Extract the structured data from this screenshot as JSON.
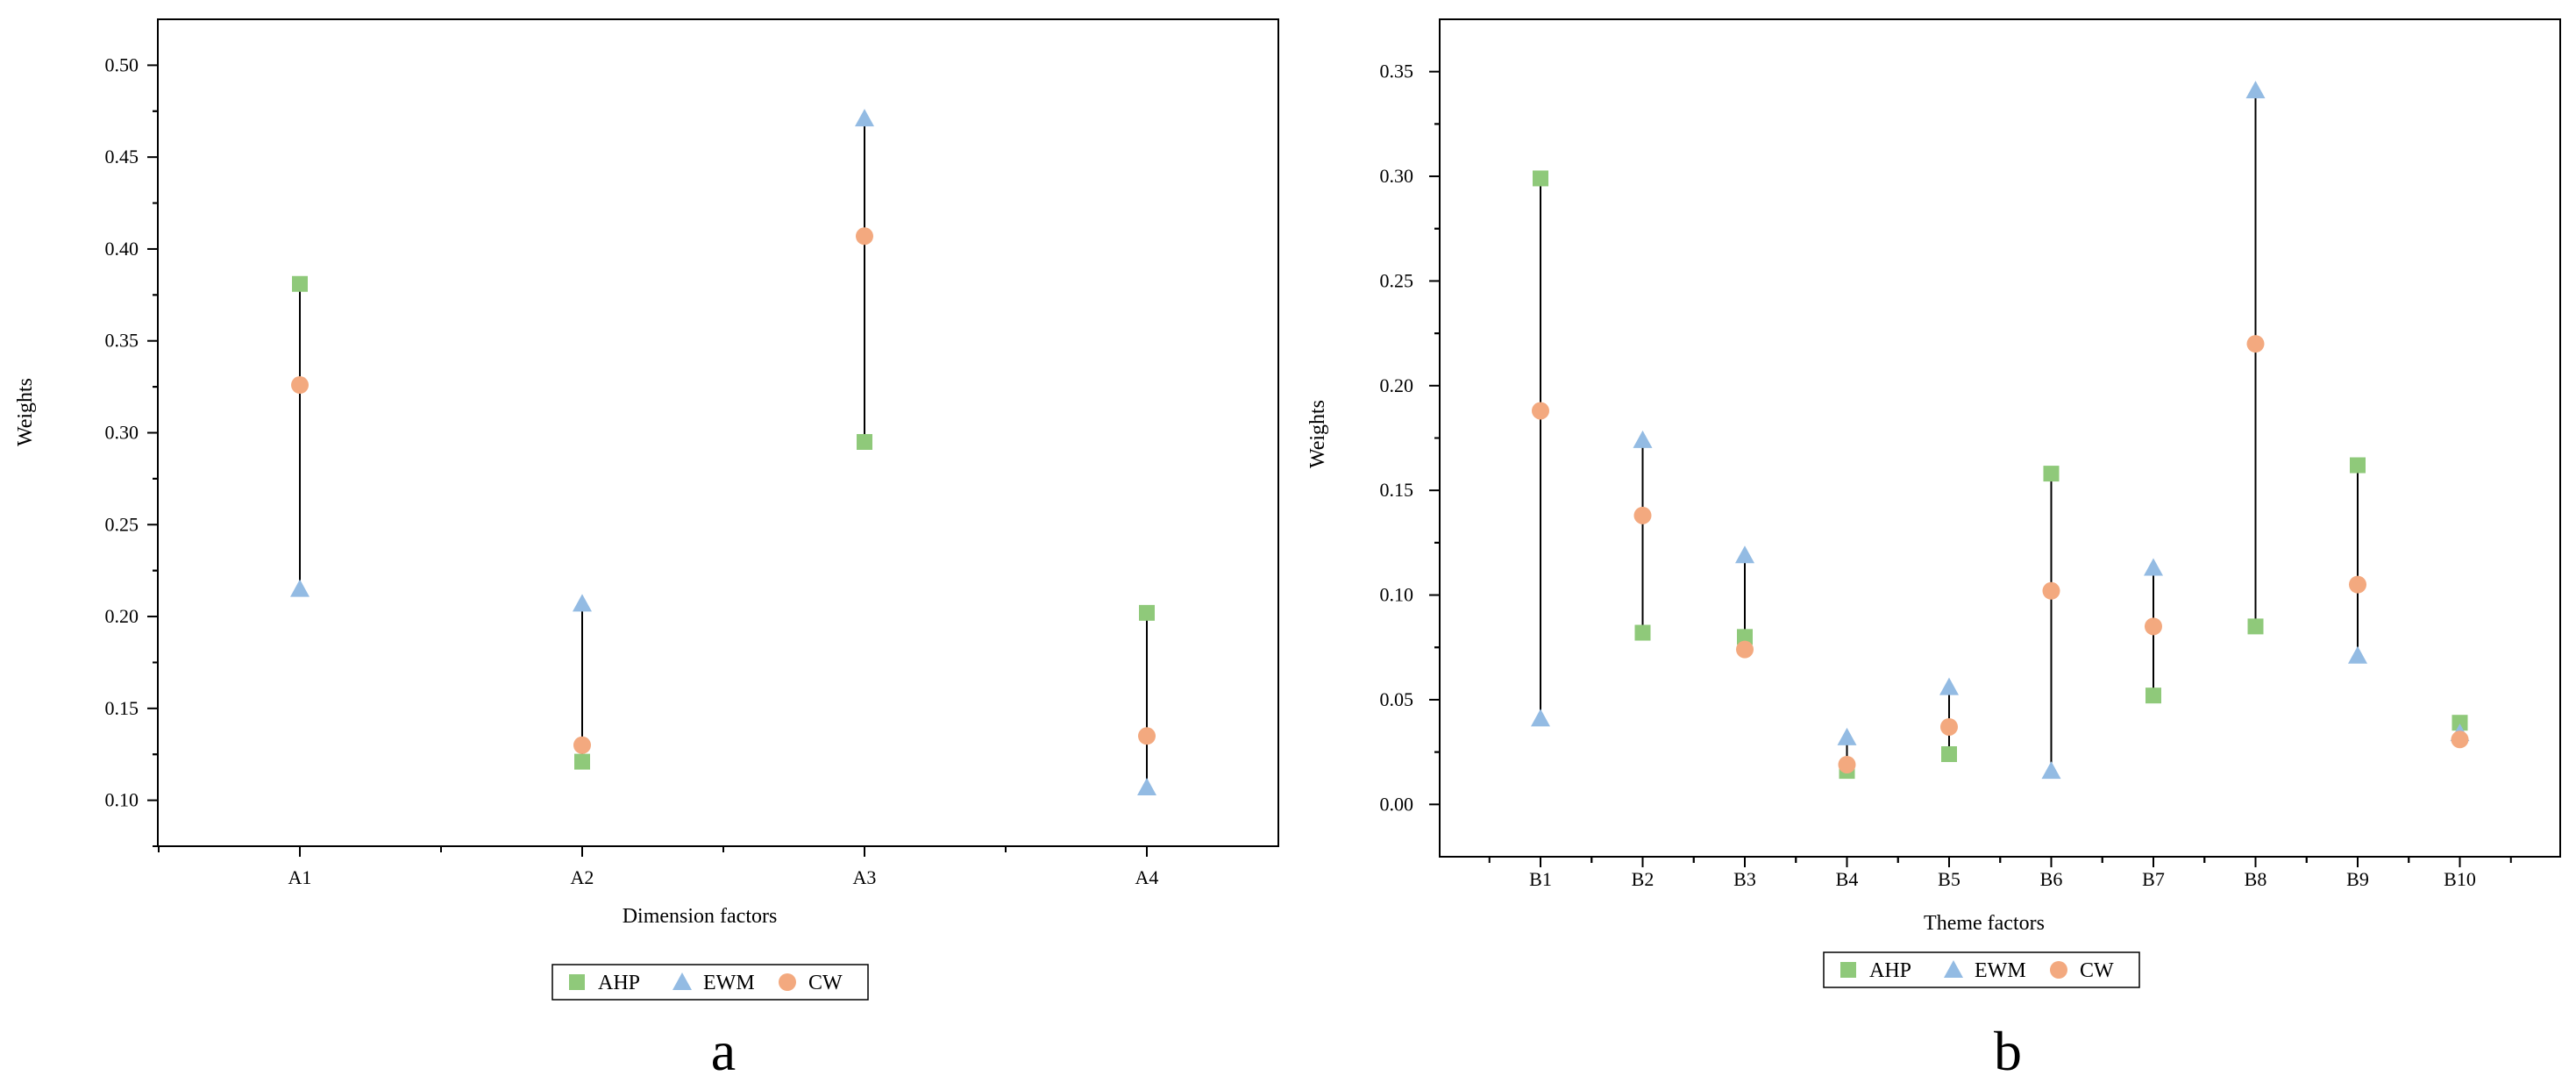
{
  "colors": {
    "AHP": "#8fc97a",
    "EWM": "#93bbe3",
    "CW": "#f3a97f",
    "line": "#000000"
  },
  "chart_data": [
    {
      "type": "scatter",
      "panel_label": "a",
      "xlabel": "Dimension factors",
      "ylabel": "Weights",
      "categories": [
        "A1",
        "A2",
        "A3",
        "A4"
      ],
      "ylim": [
        0.075,
        0.525
      ],
      "yticks": [
        0.1,
        0.15,
        0.2,
        0.25,
        0.3,
        0.35,
        0.4,
        0.45,
        0.5
      ],
      "ytick_labels": [
        "0.10",
        "0.15",
        "0.20",
        "0.25",
        "0.30",
        "0.35",
        "0.40",
        "0.45",
        "0.50"
      ],
      "series": [
        {
          "name": "AHP",
          "marker": "square",
          "values": [
            0.381,
            0.121,
            0.295,
            0.202
          ]
        },
        {
          "name": "EWM",
          "marker": "triangle",
          "values": [
            0.215,
            0.207,
            0.471,
            0.107
          ]
        },
        {
          "name": "CW",
          "marker": "circle",
          "values": [
            0.326,
            0.13,
            0.407,
            0.135
          ]
        }
      ],
      "legend": [
        "AHP",
        "EWM",
        "CW"
      ],
      "legend_position": "bottom-center",
      "grid": false
    },
    {
      "type": "scatter",
      "panel_label": "b",
      "xlabel": "Theme factors",
      "ylabel": "Weights",
      "categories": [
        "B1",
        "B2",
        "B3",
        "B4",
        "B5",
        "B6",
        "B7",
        "B8",
        "B9",
        "B10"
      ],
      "ylim": [
        -0.025,
        0.375
      ],
      "yticks": [
        0.0,
        0.05,
        0.1,
        0.15,
        0.2,
        0.25,
        0.3,
        0.35
      ],
      "ytick_labels": [
        "0.00",
        "0.05",
        "0.10",
        "0.15",
        "0.20",
        "0.25",
        "0.30",
        "0.35"
      ],
      "series": [
        {
          "name": "AHP",
          "marker": "square",
          "values": [
            0.299,
            0.082,
            0.08,
            0.016,
            0.024,
            0.158,
            0.052,
            0.085,
            0.162,
            0.039
          ]
        },
        {
          "name": "EWM",
          "marker": "triangle",
          "values": [
            0.041,
            0.174,
            0.119,
            0.032,
            0.056,
            0.016,
            0.113,
            0.341,
            0.071,
            0.034
          ]
        },
        {
          "name": "CW",
          "marker": "circle",
          "values": [
            0.188,
            0.138,
            0.074,
            0.019,
            0.037,
            0.102,
            0.085,
            0.22,
            0.105,
            0.031
          ]
        }
      ],
      "legend": [
        "AHP",
        "EWM",
        "CW"
      ],
      "legend_position": "bottom-center",
      "grid": false
    }
  ]
}
